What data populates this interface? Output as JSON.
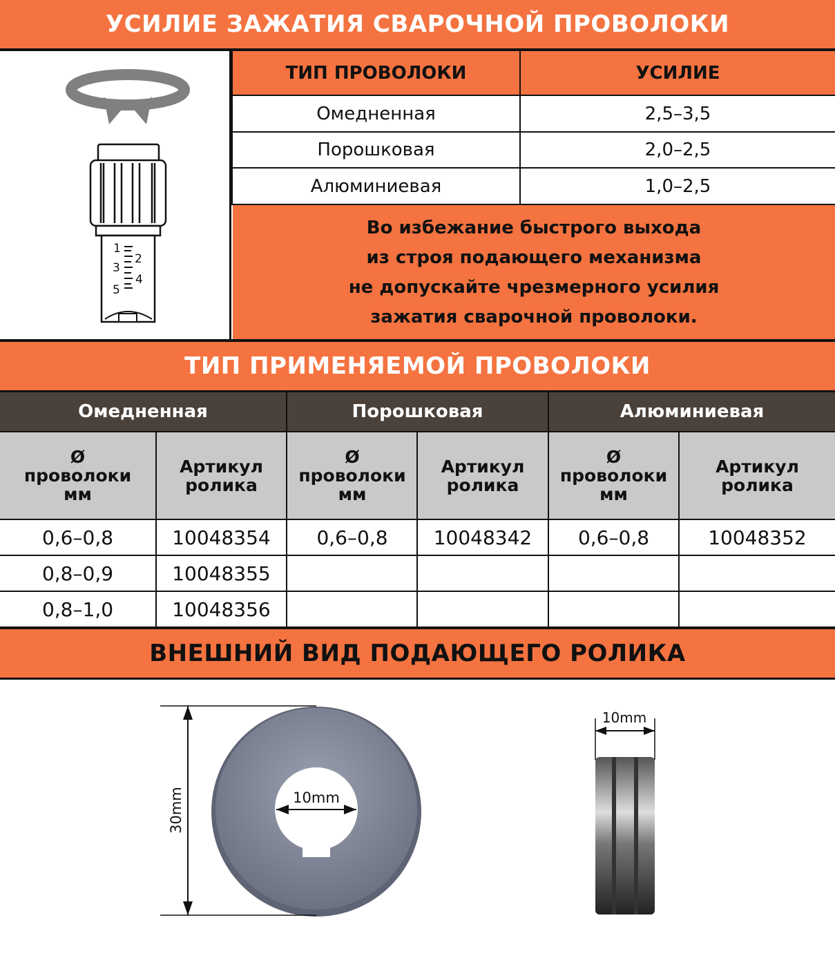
{
  "colors": {
    "accent": "#f47340",
    "dark": "#4a413a",
    "header_gray": "#c9c9c9"
  },
  "section1": {
    "title": "УСИЛИЕ ЗАЖАТИЯ СВАРОЧНОЙ ПРОВОЛОКИ",
    "columns": [
      "ТИП ПРОВОЛОКИ",
      "УСИЛИЕ"
    ],
    "rows": [
      {
        "type": "Омедненная",
        "force": "2,5–3,5"
      },
      {
        "type": "Порошковая",
        "force": "2,0–2,5"
      },
      {
        "type": "Алюминиевая",
        "force": "1,0–2,5"
      }
    ],
    "warning": [
      "Во избежание быстрого выхода",
      "из строя подающего механизма",
      "не допускайте чрезмерного усилия",
      "зажатия сварочной проволоки."
    ],
    "scale_labels": [
      "1",
      "2",
      "3",
      "4",
      "5"
    ]
  },
  "section2": {
    "title": "ТИП ПРИМЕНЯЕМОЙ ПРОВОЛОКИ",
    "groups": [
      "Омедненная",
      "Порошковая",
      "Алюминиевая"
    ],
    "subheaders": {
      "diameter": [
        "Ø",
        "проволоки",
        "мм"
      ],
      "article": [
        "Артикул",
        "ролика"
      ]
    },
    "rows": [
      [
        "0,6–0,8",
        "10048354",
        "0,6–0,8",
        "10048342",
        "0,6–0,8",
        "10048352"
      ],
      [
        "0,8–0,9",
        "10048355",
        "",
        "",
        "",
        ""
      ],
      [
        "0,8–1,0",
        "10048356",
        "",
        "",
        "",
        ""
      ]
    ]
  },
  "section3": {
    "title": "ВНЕШНИЙ ВИД ПОДАЮЩЕГО РОЛИКА",
    "outer_diameter": "30mm",
    "inner_diameter": "10mm",
    "width": "10mm"
  }
}
